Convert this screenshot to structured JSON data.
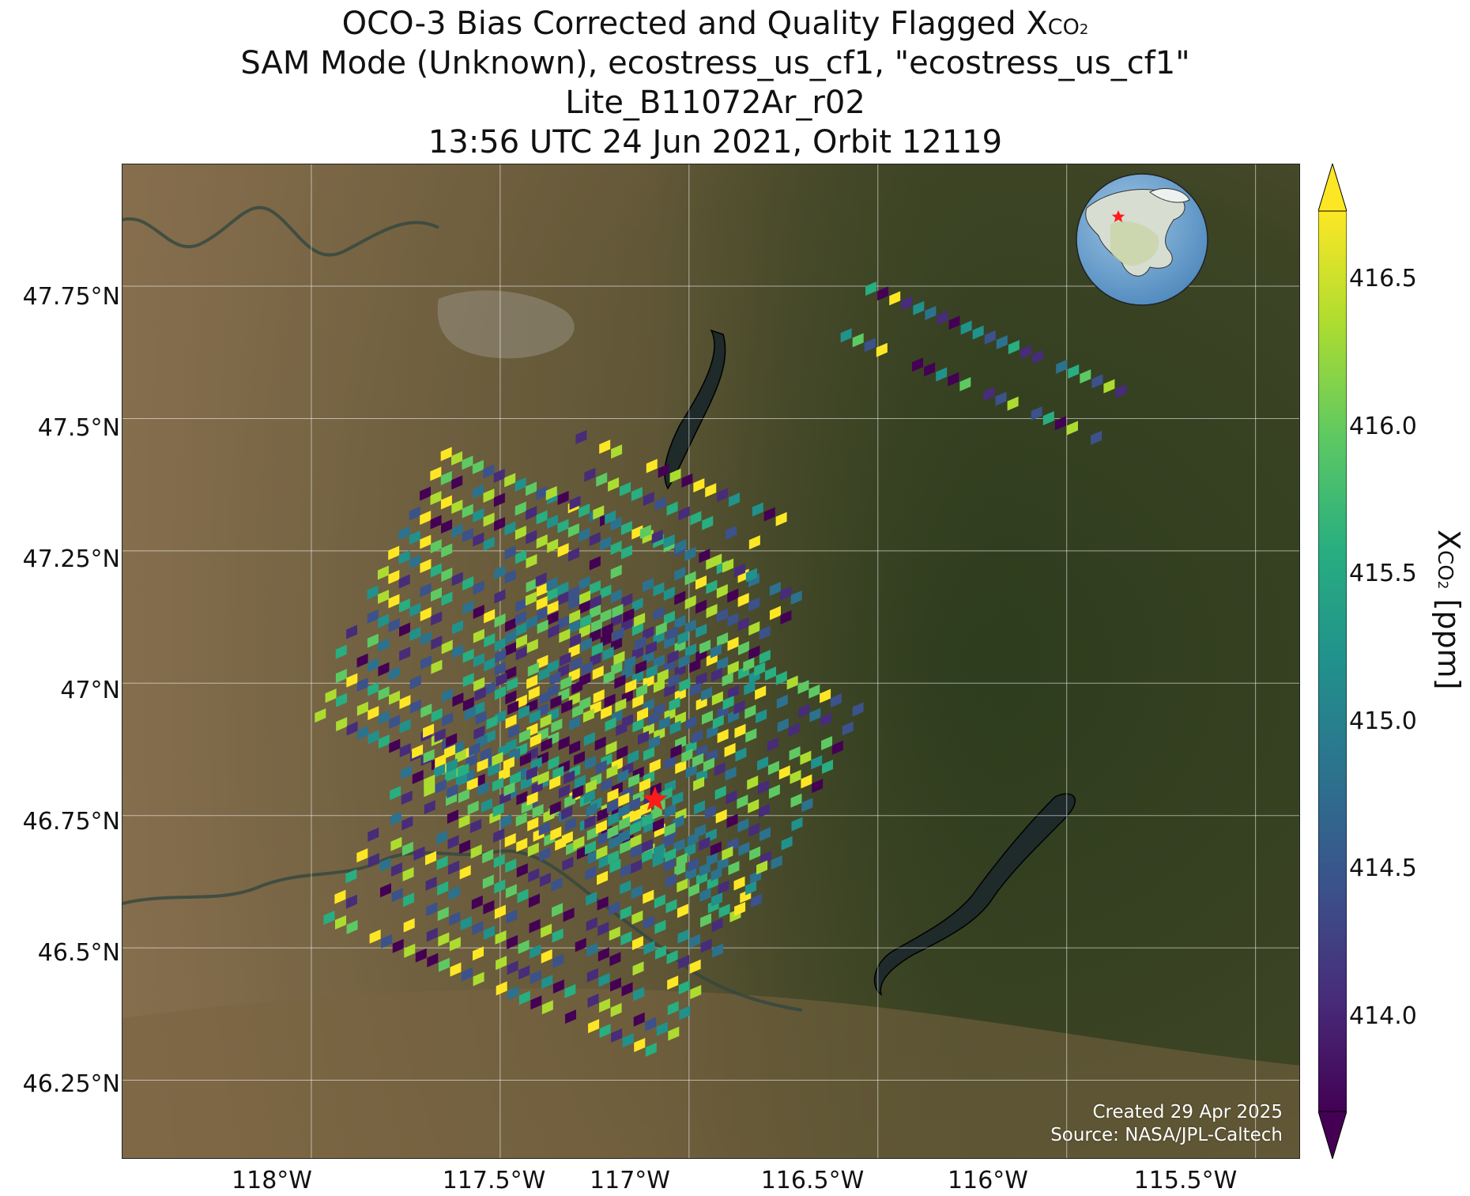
{
  "title": {
    "line1_main": "OCO-3 Bias Corrected and Quality Flagged X",
    "line1_sub": "CO",
    "line1_subsub": "2",
    "line2": "SAM Mode (Unknown), ecostress_us_cf1, \"ecostress_us_cf1\"",
    "line3": "Lite_B11072Ar_r02",
    "line4": "13:56 UTC 24 Jun 2021, Orbit 12119"
  },
  "map": {
    "x_ticks": [
      "118°W",
      "117.5°W",
      "117°W",
      "116.5°W",
      "116°W",
      "115.5°W"
    ],
    "y_ticks": [
      "47.75°N",
      "47.5°N",
      "47.25°N",
      "47°N",
      "46.75°N",
      "46.5°N",
      "46.25°N"
    ],
    "extent": {
      "lon_min": -118.5,
      "lon_max": -115.38,
      "lat_min": 46.1,
      "lat_max": 47.98
    },
    "target_marker": {
      "lon": -117.09,
      "lat": 46.78,
      "color": "#ff1a1a"
    },
    "inset": {
      "name": "globe-locator",
      "marker_color": "#ff1a1a"
    }
  },
  "credits": {
    "line1": "Created 29 Apr 2025",
    "line2": "Source: NASA/JPL-Caltech"
  },
  "colorbar": {
    "label_main": "X",
    "label_sub": "CO",
    "label_subsub": "2",
    "label_unit": "[ppm]",
    "ticks": [
      "416.5",
      "416.0",
      "415.5",
      "415.0",
      "414.5",
      "414.0"
    ],
    "range": [
      413.65,
      416.7
    ],
    "colormap": "viridis",
    "extend": "both"
  },
  "colors": {
    "viridis": [
      "#440154",
      "#472c7a",
      "#3b528b",
      "#2c728e",
      "#21918c",
      "#28ae80",
      "#5ec962",
      "#addc30",
      "#fde725"
    ]
  }
}
